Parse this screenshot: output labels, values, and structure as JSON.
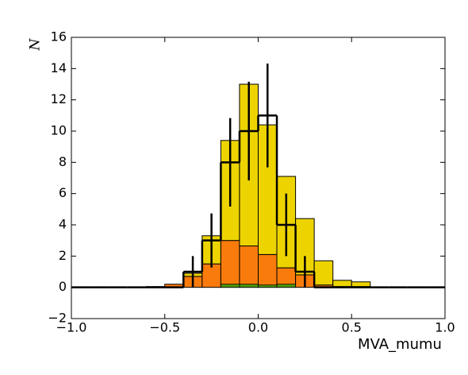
{
  "chart_data": {
    "type": "histogram",
    "xlabel": "MVA_mumu",
    "ylabel": "N",
    "bins": [
      -1.0,
      -0.9,
      -0.8,
      -0.7,
      -0.6,
      -0.5,
      -0.4,
      -0.3,
      -0.2,
      -0.1,
      0.0,
      0.1,
      0.2,
      0.3,
      0.4,
      0.5,
      0.6,
      0.7,
      0.8,
      0.9,
      1.0
    ],
    "series": [
      {
        "color": "#f97b0c",
        "values": [
          0,
          0,
          0,
          0,
          0.05,
          0.2,
          0.7,
          1.5,
          3.0,
          2.65,
          2.1,
          1.25,
          0.8,
          0.15,
          0.05,
          0.05,
          0,
          0,
          0,
          0
        ]
      },
      {
        "color": "#edd400",
        "values": [
          0,
          0,
          0,
          0,
          0,
          0,
          0.2,
          1.8,
          6.4,
          10.35,
          8.3,
          5.85,
          3.6,
          1.55,
          0.4,
          0.3,
          0,
          0,
          0,
          0
        ]
      }
    ],
    "overlay": {
      "color": "#4e9a06",
      "values": [
        0,
        0,
        0,
        0,
        0,
        0,
        0,
        0,
        0.2,
        0.2,
        0.15,
        0.2,
        0,
        0,
        0,
        0,
        0,
        0,
        0,
        0
      ]
    },
    "data": {
      "color": "#000000",
      "values": [
        0,
        0,
        0,
        0,
        0,
        0,
        1,
        3,
        8,
        10,
        11,
        4,
        1,
        0,
        0,
        0,
        0,
        0,
        0,
        0
      ],
      "errors": [
        0,
        0,
        0,
        0,
        0,
        0,
        1,
        1.73,
        2.83,
        3.16,
        3.32,
        2,
        1,
        0,
        0,
        0,
        0,
        0,
        0,
        0
      ]
    },
    "xlim": [
      -1,
      1
    ],
    "ylim": [
      -2,
      16
    ],
    "xticks": [
      {
        "value": -1,
        "label": "−1.0"
      },
      {
        "value": -0.5,
        "label": "−0.5"
      },
      {
        "value": 0,
        "label": "0.0"
      },
      {
        "value": 0.5,
        "label": "0.5"
      },
      {
        "value": 1,
        "label": "1.0"
      }
    ],
    "yticks": [
      {
        "value": -2,
        "label": "−2"
      },
      0,
      2,
      4,
      6,
      8,
      10,
      12,
      14,
      16
    ]
  }
}
